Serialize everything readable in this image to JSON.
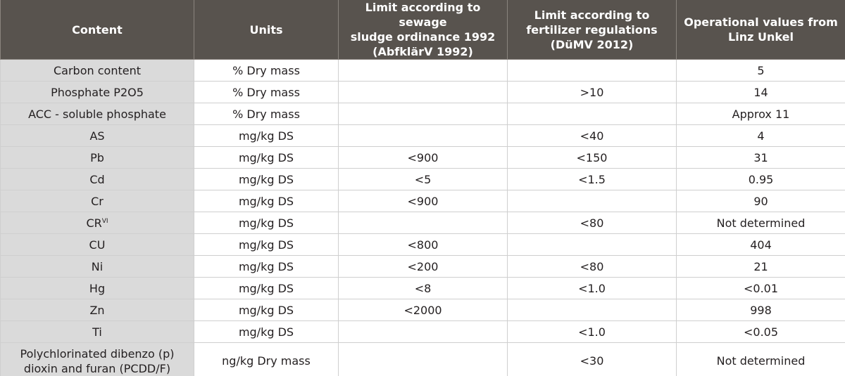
{
  "table": {
    "header": [
      [
        "Content"
      ],
      [
        "Units"
      ],
      [
        "Limit according to sewage",
        "sludge ordinance 1992",
        "(AbfklärV 1992)"
      ],
      [
        "Limit according to",
        "fertilizer regulations",
        "(DüMV 2012)"
      ],
      [
        "Operational values from",
        "Linz Unkel"
      ]
    ],
    "rows": [
      [
        "Carbon content",
        "% Dry mass",
        null,
        null,
        "5"
      ],
      [
        "Phosphate P2O5",
        "% Dry mass",
        null,
        ">10",
        "14"
      ],
      [
        "ACC - soluble phosphate",
        "% Dry mass",
        null,
        null,
        "Approx 11"
      ],
      [
        "AS",
        "mg/kg DS",
        null,
        "<40",
        "4"
      ],
      [
        "Pb",
        "mg/kg DS",
        "<900",
        "<150",
        "31"
      ],
      [
        "Cd",
        "mg/kg DS",
        "<5",
        "<1.5",
        "0.95"
      ],
      [
        "Cr",
        "mg/kg DS",
        "<900",
        null,
        "90"
      ],
      [
        {
          "text": "CR",
          "sup": "VI"
        },
        "mg/kg DS",
        null,
        "<80",
        "Not determined"
      ],
      [
        "CU",
        "mg/kg DS",
        "<800",
        null,
        "404"
      ],
      [
        "Ni",
        "mg/kg DS",
        "<200",
        "<80",
        "21"
      ],
      [
        "Hg",
        "mg/kg DS",
        "<8",
        "<1.0",
        "<0.01"
      ],
      [
        "Zn",
        "mg/kg DS",
        "<2000",
        null,
        "998"
      ],
      [
        "Ti",
        "mg/kg DS",
        null,
        "<1.0",
        "<0.05"
      ],
      [
        [
          "Polychlorinated dibenzo (p)",
          "dioxin and furan (PCDD/F)"
        ],
        "ng/kg Dry mass",
        null,
        "<30",
        "Not determined"
      ]
    ]
  }
}
